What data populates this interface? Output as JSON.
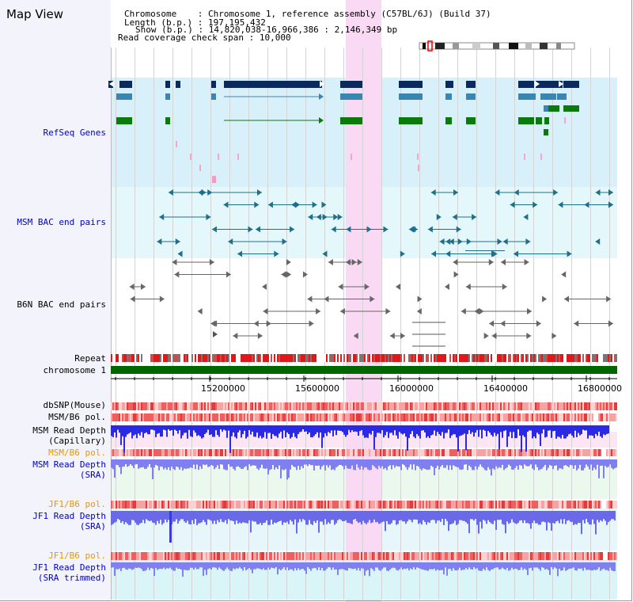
{
  "title": "Map View",
  "info": {
    "chromosome_label": "Chromosome",
    "chromosome_value": "Chromosome 1, reference assembly (C57BL/6J) (Build 37)",
    "length_label": "Length (b.p.)",
    "length_value": "197,195,432",
    "show_label": "Show (b.p.)",
    "show_value": "14,820,038-16,966,386 : 2,146,349 bp",
    "coverage_label": "Read coverage check span",
    "coverage_value": "10,000"
  },
  "tracks": {
    "refseq": "RefSeq Genes",
    "msm_bac": "MSM BAC end pairs",
    "b6n_bac": "B6N BAC end pairs",
    "repeat": "Repeat",
    "chromosome": "chromosome 1",
    "dbsnp": "dbSNP(Mouse)",
    "msm_pol": "MSM/B6 pol.",
    "msm_rd_cap_1": "MSM Read Depth",
    "msm_rd_cap_2": "(Capillary)",
    "msm_pol2": "MSM/B6 pol.",
    "msm_rd_sra_1": "MSM Read Depth",
    "msm_rd_sra_2": "(SRA)",
    "jf1_pol": "JF1/B6 pol.",
    "jf1_rd_sra_1": "JF1 Read Depth",
    "jf1_rd_sra_2": "(SRA)",
    "jf1_pol2": "JF1/B6 pol.",
    "jf1_rd_tr_1": "JF1 Read Depth",
    "jf1_rd_tr_2": "(SRA trimmed)"
  },
  "axis": {
    "ticks": [
      "15200000",
      "15600000",
      "16000000",
      "16400000",
      "16800000"
    ]
  },
  "colors": {
    "label_blue": "#0000cc",
    "label_orange": "#e69900",
    "highlight": "#f9d9f4",
    "gene_dark": "#0a2a5e",
    "gene_mid": "#3a86b0",
    "gene_green": "#0a7a0a",
    "chromosome_bar": "#006600"
  }
}
